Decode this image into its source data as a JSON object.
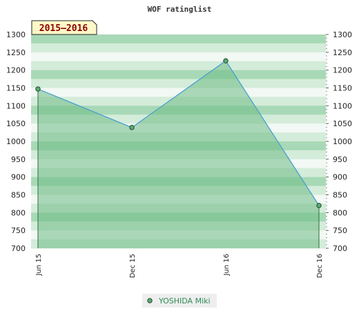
{
  "chart_data": {
    "type": "line",
    "title": "WOF ratinglist",
    "badge": "2015–2016",
    "xlabel": "",
    "ylabel": "",
    "categories": [
      "Jun 15",
      "Dec 15",
      "Jun 16",
      "Dec 16"
    ],
    "ylim": [
      700,
      1300
    ],
    "yticks": [
      700,
      750,
      800,
      850,
      900,
      950,
      1000,
      1050,
      1100,
      1150,
      1200,
      1250,
      1300
    ],
    "series": [
      {
        "name": "YOSHIDA Miki",
        "values": [
          1147,
          1039,
          1226,
          820
        ]
      }
    ],
    "legend": "bottom-center",
    "grid": false,
    "colors": {
      "line": "#4a9fd0",
      "fill": "#6dbb85",
      "marker": "#5dab78",
      "band_light": "#f2f8f3",
      "band_mid": "#d4ecda",
      "band_dark": "#a8d9b6",
      "badge_fill": "#fff8c8",
      "badge_text": "#8b0000",
      "legend_text": "#2e8b57"
    }
  }
}
